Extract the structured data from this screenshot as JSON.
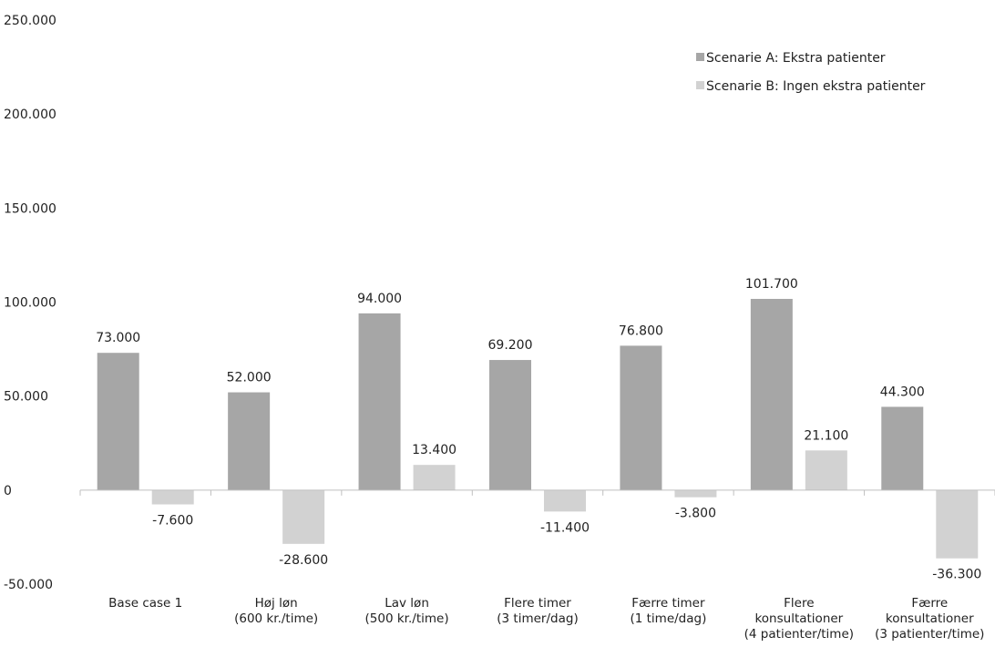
{
  "chart_data": {
    "type": "bar",
    "title": "",
    "xlabel": "",
    "ylabel": "",
    "ylim": [
      -50000,
      250000
    ],
    "yticks": [
      -50000,
      0,
      50000,
      100000,
      150000,
      200000,
      250000
    ],
    "ytick_labels": [
      "-50.000",
      "0",
      "50.000",
      "100.000",
      "150.000",
      "200.000",
      "250.000"
    ],
    "grid": false,
    "legend_position": "top-right",
    "categories": [
      [
        "Base case 1"
      ],
      [
        "Høj løn",
        "(600 kr./time)"
      ],
      [
        "Lav løn",
        "(500 kr./time)"
      ],
      [
        "Flere timer",
        "(3 timer/dag)"
      ],
      [
        "Færre timer",
        "(1 time/dag)"
      ],
      [
        "Flere",
        "konsultationer",
        "(4 patienter/time)"
      ],
      [
        "Færre",
        "konsultationer",
        "(3 patienter/time)"
      ]
    ],
    "series": [
      {
        "name": "Scenarie A: Ekstra patienter",
        "color": "#a6a6a6",
        "values": [
          73000,
          52000,
          94000,
          69200,
          76800,
          101700,
          44300
        ],
        "labels": [
          "73.000",
          "52.000",
          "94.000",
          "69.200",
          "76.800",
          "101.700",
          "44.300"
        ]
      },
      {
        "name": "Scenarie B: Ingen ekstra patienter",
        "color": "#d2d2d2",
        "values": [
          -7600,
          -28600,
          13400,
          -11400,
          -3800,
          21100,
          -36300
        ],
        "labels": [
          "-7.600",
          "-28.600",
          "13.400",
          "-11.400",
          "-3.800",
          "21.100",
          "-36.300"
        ]
      }
    ]
  }
}
